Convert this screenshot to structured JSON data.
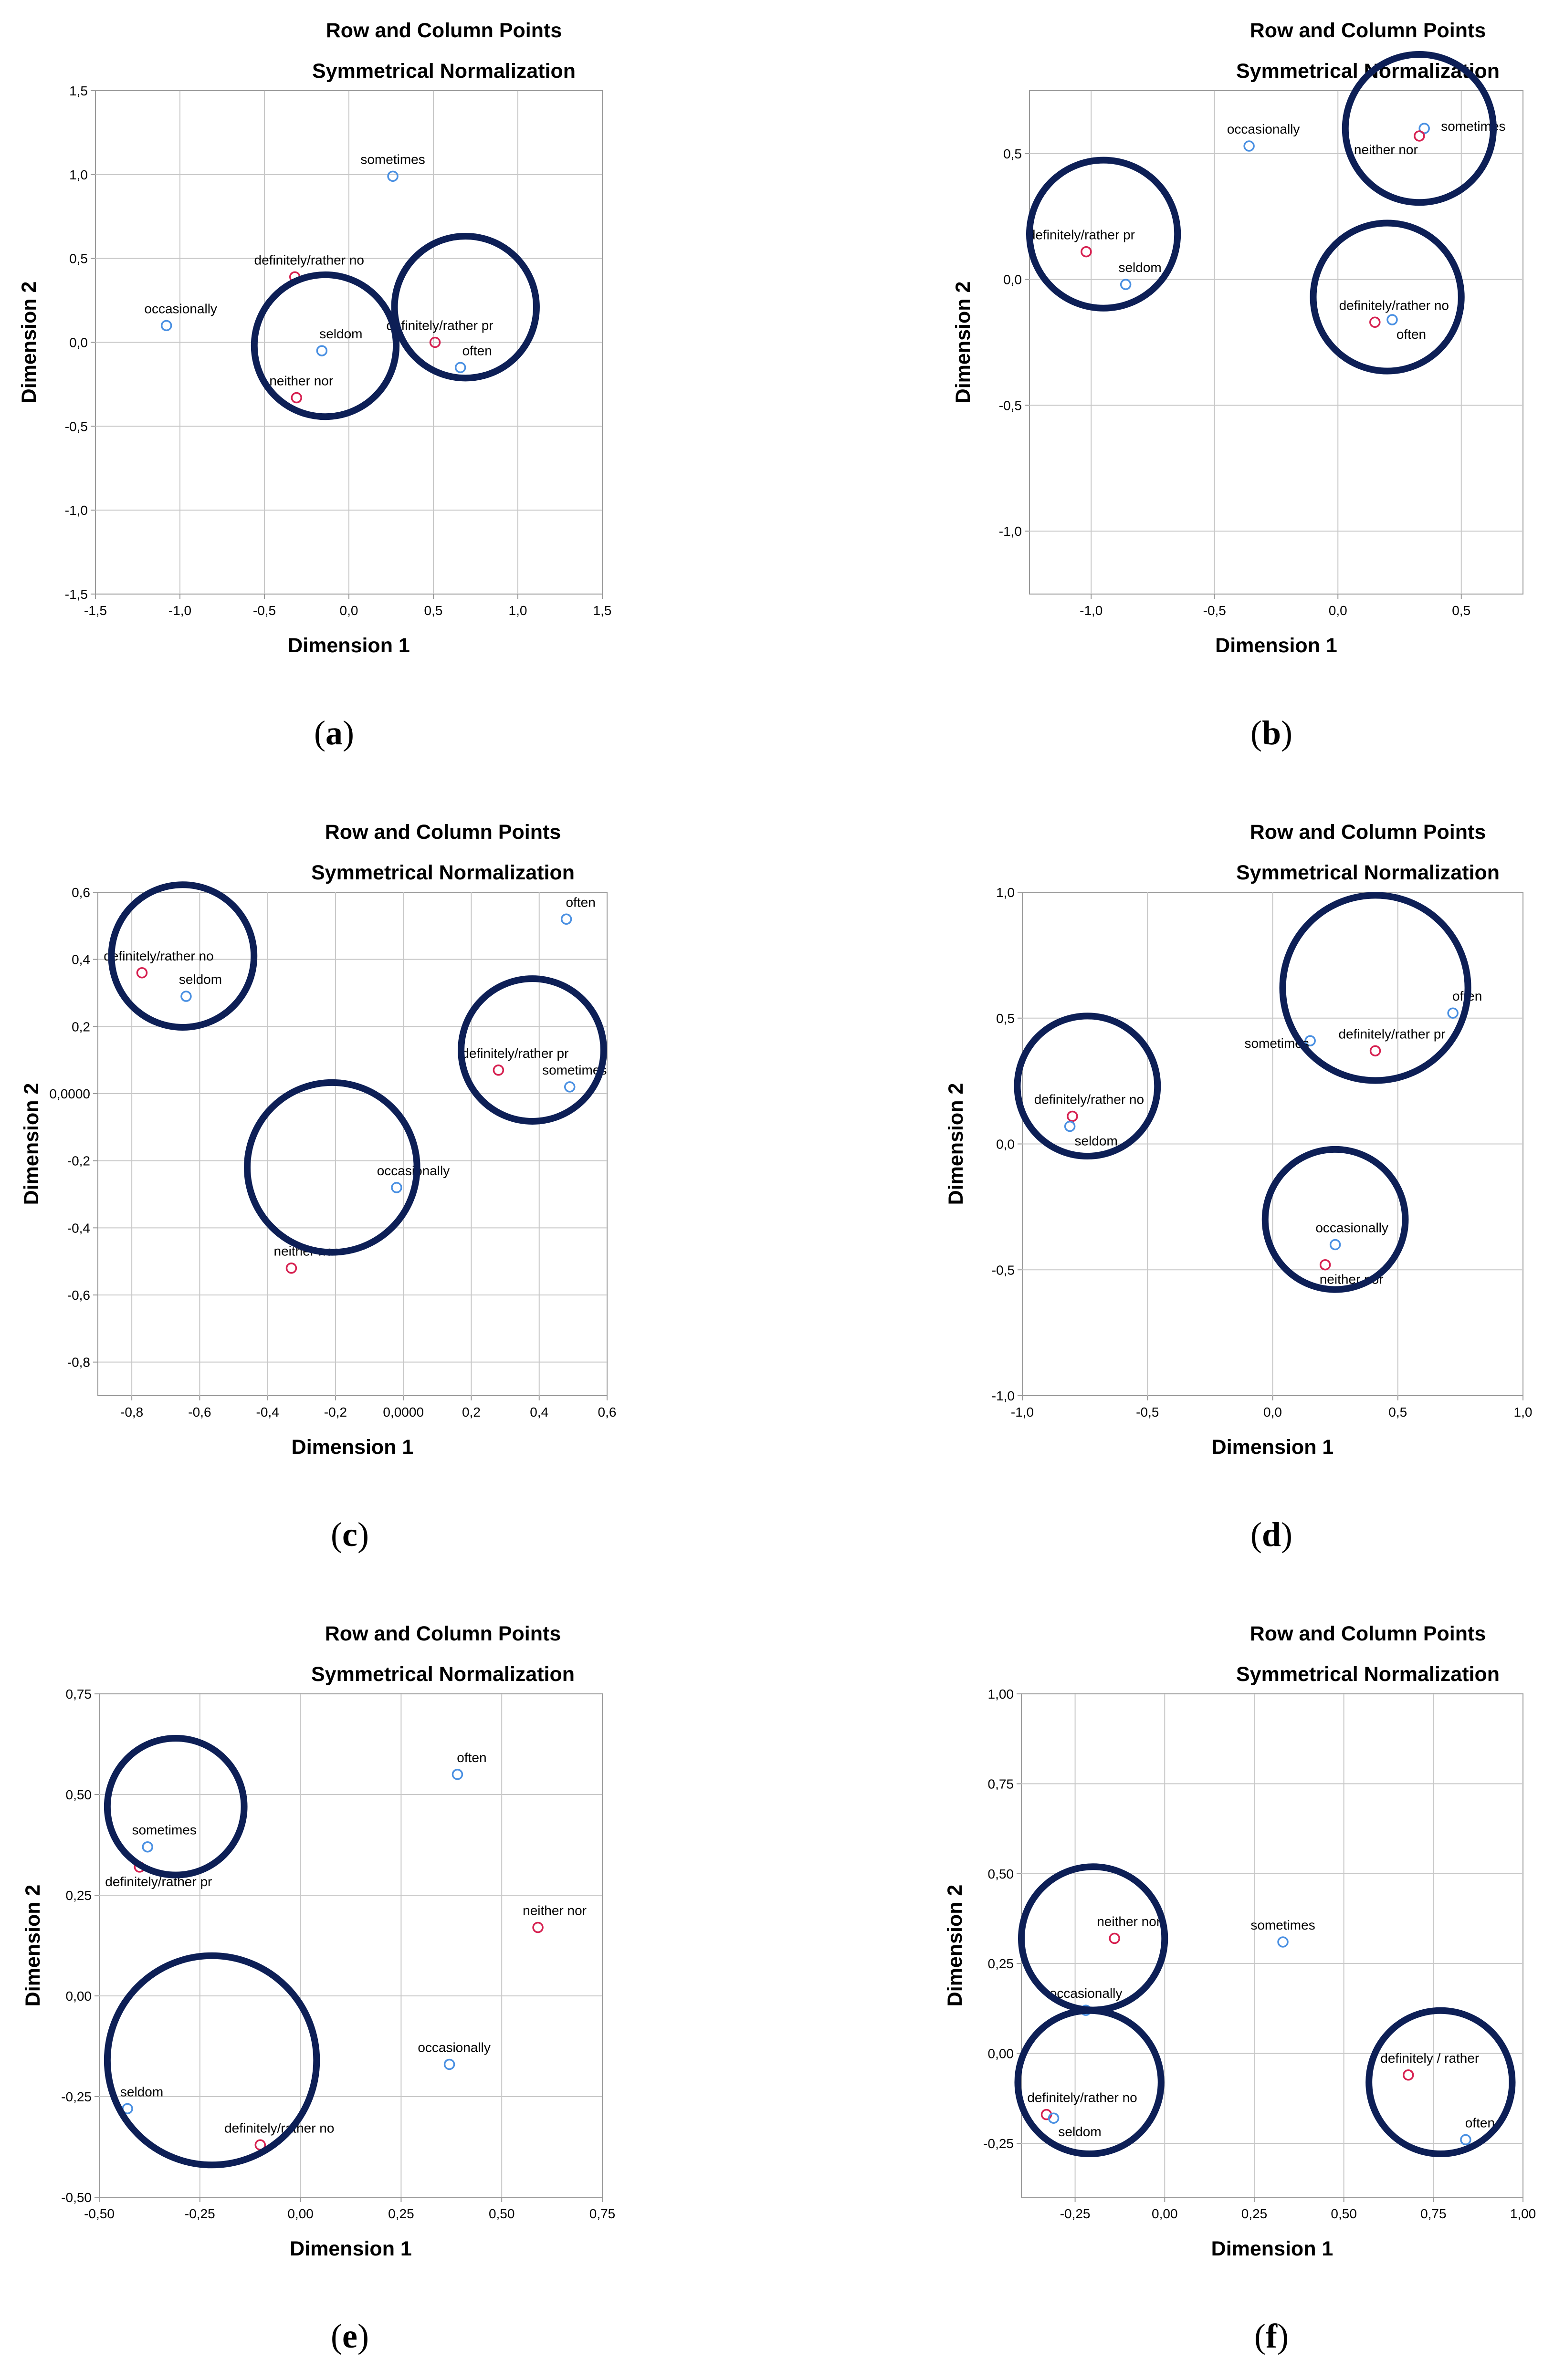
{
  "figure": {
    "series_colors": {
      "row": "#d62050",
      "column": "#4a90e2"
    },
    "highlight_color": "#0d1f56"
  },
  "chart_data": [
    {
      "id": "a",
      "caption_letter": "a",
      "type": "scatter",
      "title": "Row and Column Points",
      "subtitle": "Symmetrical Normalization",
      "xlabel": "Dimension 1",
      "ylabel": "Dimension 2",
      "xlim": [
        -1.5,
        1.5
      ],
      "ylim": [
        -1.5,
        1.5
      ],
      "xticks": [
        -1.5,
        -1.0,
        -0.5,
        0.0,
        0.5,
        1.0,
        1.5
      ],
      "yticks": [
        -1.5,
        -1.0,
        -0.5,
        0.0,
        0.5,
        1.0,
        1.5
      ],
      "xtick_labels": [
        "-1,5",
        "-1,0",
        "-0,5",
        "0,0",
        "0,5",
        "1,0",
        "1,5"
      ],
      "ytick_labels": [
        "-1,5",
        "-1,0",
        "-0,5",
        "0,0",
        "0,5",
        "1,0",
        "1,5"
      ],
      "grid": true,
      "points": [
        {
          "label": "sometimes",
          "series": "column",
          "x": 0.26,
          "y": 0.99
        },
        {
          "label": "definitely/rather no",
          "series": "row",
          "x": -0.32,
          "y": 0.39
        },
        {
          "label": "occasionally",
          "series": "column",
          "x": -1.08,
          "y": 0.1
        },
        {
          "label": "seldom",
          "series": "column",
          "x": -0.16,
          "y": -0.05
        },
        {
          "label": "definitely/rather pr",
          "series": "row",
          "x": 0.51,
          "y": 0.0
        },
        {
          "label": "often",
          "series": "column",
          "x": 0.66,
          "y": -0.15
        },
        {
          "label": "neither nor",
          "series": "row",
          "x": -0.31,
          "y": -0.33
        }
      ],
      "circles": [
        {
          "cx": -0.14,
          "cy": -0.02,
          "r": 0.42
        },
        {
          "cx": 0.69,
          "cy": 0.21,
          "r": 0.42
        }
      ]
    },
    {
      "id": "b",
      "caption_letter": "b",
      "type": "scatter",
      "title": "Row and Column Points",
      "subtitle": "Symmetrical Normalization",
      "xlabel": "Dimension 1",
      "ylabel": "Dimension 2",
      "xlim": [
        -1.25,
        0.75
      ],
      "ylim": [
        -1.25,
        0.75
      ],
      "xticks": [
        -1.0,
        -0.5,
        0.0,
        0.5
      ],
      "yticks": [
        -1.0,
        -0.5,
        0.0,
        0.5
      ],
      "xtick_labels": [
        "-1,0",
        "-0,5",
        "0,0",
        "0,5"
      ],
      "ytick_labels": [
        "-1,0",
        "-0,5",
        "0,0",
        "0,5"
      ],
      "grid": true,
      "points": [
        {
          "label": "occasionally",
          "series": "column",
          "x": -0.36,
          "y": 0.53
        },
        {
          "label": "sometimes",
          "series": "column",
          "x": 0.35,
          "y": 0.6
        },
        {
          "label": "neither nor",
          "series": "row",
          "x": 0.33,
          "y": 0.57
        },
        {
          "label": "definitely/rather pr",
          "series": "row",
          "x": -1.02,
          "y": 0.11
        },
        {
          "label": "seldom",
          "series": "column",
          "x": -0.86,
          "y": -0.02
        },
        {
          "label": "definitely/rather no",
          "series": "row",
          "x": 0.15,
          "y": -0.17
        },
        {
          "label": "often",
          "series": "column",
          "x": 0.22,
          "y": -0.16
        }
      ],
      "circles": [
        {
          "cx": -0.95,
          "cy": 0.18,
          "r": 0.3
        },
        {
          "cx": 0.33,
          "cy": 0.6,
          "r": 0.3
        },
        {
          "cx": 0.2,
          "cy": -0.07,
          "r": 0.3
        }
      ]
    },
    {
      "id": "c",
      "caption_letter": "c",
      "type": "scatter",
      "title": "Row and Column Points",
      "subtitle": "Symmetrical Normalization",
      "xlabel": "Dimension 1",
      "ylabel": "Dimension 2",
      "xlim": [
        -0.9,
        0.6
      ],
      "ylim": [
        -0.9,
        0.6
      ],
      "xticks": [
        -0.8,
        -0.6,
        -0.4,
        -0.2,
        0.0,
        0.2,
        0.4,
        0.6
      ],
      "yticks": [
        -0.8,
        -0.6,
        -0.4,
        -0.2,
        0.0,
        0.2,
        0.4,
        0.6
      ],
      "xtick_labels": [
        "-0,8",
        "-0,6",
        "-0,4",
        "-0,2",
        "0,0000",
        "0,2",
        "0,4",
        "0,6"
      ],
      "ytick_labels": [
        "-0,8",
        "-0,6",
        "-0,4",
        "-0,2",
        "0,0000",
        "0,2",
        "0,4",
        "0,6"
      ],
      "grid": true,
      "points": [
        {
          "label": "often",
          "series": "column",
          "x": 0.48,
          "y": 0.52
        },
        {
          "label": "definitely/rather no",
          "series": "row",
          "x": -0.77,
          "y": 0.36
        },
        {
          "label": "seldom",
          "series": "column",
          "x": -0.64,
          "y": 0.29
        },
        {
          "label": "definitely/rather pr",
          "series": "row",
          "x": 0.28,
          "y": 0.07
        },
        {
          "label": "sometimes",
          "series": "column",
          "x": 0.49,
          "y": 0.02
        },
        {
          "label": "occasionally",
          "series": "column",
          "x": -0.02,
          "y": -0.28
        },
        {
          "label": "neither nor",
          "series": "row",
          "x": -0.33,
          "y": -0.52
        }
      ],
      "circles": [
        {
          "cx": -0.65,
          "cy": 0.41,
          "r": 0.21
        },
        {
          "cx": 0.38,
          "cy": 0.13,
          "r": 0.21
        },
        {
          "cx": -0.21,
          "cy": -0.22,
          "r": 0.25
        }
      ]
    },
    {
      "id": "d",
      "caption_letter": "d",
      "type": "scatter",
      "title": "Row and Column Points",
      "subtitle": "Symmetrical Normalization",
      "xlabel": "Dimension 1",
      "ylabel": "Dimension 2",
      "xlim": [
        -1.0,
        1.0
      ],
      "ylim": [
        -1.0,
        1.0
      ],
      "xticks": [
        -1.0,
        -0.5,
        0.0,
        0.5,
        1.0
      ],
      "yticks": [
        -1.0,
        -0.5,
        0.0,
        0.5,
        1.0
      ],
      "xtick_labels": [
        "-1,0",
        "-0,5",
        "0,0",
        "0,5",
        "1,0"
      ],
      "ytick_labels": [
        "-1,0",
        "-0,5",
        "0,0",
        "0,5",
        "1,0"
      ],
      "grid": true,
      "points": [
        {
          "label": "often",
          "series": "column",
          "x": 0.72,
          "y": 0.52
        },
        {
          "label": "definitely/rather pr",
          "series": "row",
          "x": 0.41,
          "y": 0.37
        },
        {
          "label": "sometimes",
          "series": "column",
          "x": 0.15,
          "y": 0.41
        },
        {
          "label": "definitely/rather no",
          "series": "row",
          "x": -0.8,
          "y": 0.11
        },
        {
          "label": "seldom",
          "series": "column",
          "x": -0.81,
          "y": 0.07
        },
        {
          "label": "occasionally",
          "series": "column",
          "x": 0.25,
          "y": -0.4
        },
        {
          "label": "neither nor",
          "series": "row",
          "x": 0.21,
          "y": -0.48
        }
      ],
      "circles": [
        {
          "cx": 0.41,
          "cy": 0.62,
          "r": 0.37
        },
        {
          "cx": -0.74,
          "cy": 0.23,
          "r": 0.28
        },
        {
          "cx": 0.25,
          "cy": -0.3,
          "r": 0.28
        }
      ]
    },
    {
      "id": "e",
      "caption_letter": "e",
      "type": "scatter",
      "title": "Row and Column Points",
      "subtitle": "Symmetrical Normalization",
      "xlabel": "Dimension 1",
      "ylabel": "Dimension 2",
      "xlim": [
        -0.5,
        0.75
      ],
      "ylim": [
        -0.5,
        0.75
      ],
      "xticks": [
        -0.5,
        -0.25,
        0.0,
        0.25,
        0.5,
        0.75
      ],
      "yticks": [
        -0.5,
        -0.25,
        0.0,
        0.25,
        0.5,
        0.75
      ],
      "xtick_labels": [
        "-0,50",
        "-0,25",
        "0,00",
        "0,25",
        "0,50",
        "0,75"
      ],
      "ytick_labels": [
        "-0,50",
        "-0,25",
        "0,00",
        "0,25",
        "0,50",
        "0,75"
      ],
      "grid": true,
      "points": [
        {
          "label": "often",
          "series": "column",
          "x": 0.39,
          "y": 0.55
        },
        {
          "label": "sometimes",
          "series": "column",
          "x": -0.38,
          "y": 0.37
        },
        {
          "label": "definitely/rather pr",
          "series": "row",
          "x": -0.4,
          "y": 0.32
        },
        {
          "label": "neither nor",
          "series": "row",
          "x": 0.59,
          "y": 0.17
        },
        {
          "label": "occasionally",
          "series": "column",
          "x": 0.37,
          "y": -0.17
        },
        {
          "label": "seldom",
          "series": "column",
          "x": -0.43,
          "y": -0.28
        },
        {
          "label": "definitely/rather no",
          "series": "row",
          "x": -0.1,
          "y": -0.37
        }
      ],
      "circles": [
        {
          "cx": -0.31,
          "cy": 0.47,
          "r": 0.17
        },
        {
          "cx": -0.22,
          "cy": -0.16,
          "r": 0.26
        }
      ]
    },
    {
      "id": "f",
      "caption_letter": "f",
      "type": "scatter",
      "title": "Row and Column Points",
      "subtitle": "Symmetrical Normalization",
      "xlabel": "Dimension 1",
      "ylabel": "Dimension 2",
      "xlim": [
        -0.4,
        1.0
      ],
      "ylim": [
        -0.4,
        1.0
      ],
      "xticks": [
        -0.25,
        0.0,
        0.25,
        0.5,
        0.75,
        1.0
      ],
      "yticks": [
        -0.25,
        0.0,
        0.25,
        0.5,
        0.75,
        1.0
      ],
      "xtick_labels": [
        "-0,25",
        "0,00",
        "0,25",
        "0,50",
        "0,75",
        "1,00"
      ],
      "ytick_labels": [
        "-0,25",
        "0,00",
        "0,25",
        "0,50",
        "0,75",
        "1,00"
      ],
      "grid": true,
      "points": [
        {
          "label": "neither nor",
          "series": "row",
          "x": -0.14,
          "y": 0.32
        },
        {
          "label": "sometimes",
          "series": "column",
          "x": 0.33,
          "y": 0.31
        },
        {
          "label": "occasionally",
          "series": "column",
          "x": -0.22,
          "y": 0.12
        },
        {
          "label": "definitely / rather",
          "series": "row",
          "x": 0.68,
          "y": -0.06
        },
        {
          "label": "definitely/rather no",
          "series": "row",
          "x": -0.33,
          "y": -0.17
        },
        {
          "label": "seldom",
          "series": "column",
          "x": -0.31,
          "y": -0.18
        },
        {
          "label": "often",
          "series": "column",
          "x": 0.84,
          "y": -0.24
        }
      ],
      "circles": [
        {
          "cx": -0.2,
          "cy": 0.32,
          "r": 0.2
        },
        {
          "cx": -0.21,
          "cy": -0.08,
          "r": 0.2
        },
        {
          "cx": 0.77,
          "cy": -0.08,
          "r": 0.2
        }
      ]
    }
  ]
}
